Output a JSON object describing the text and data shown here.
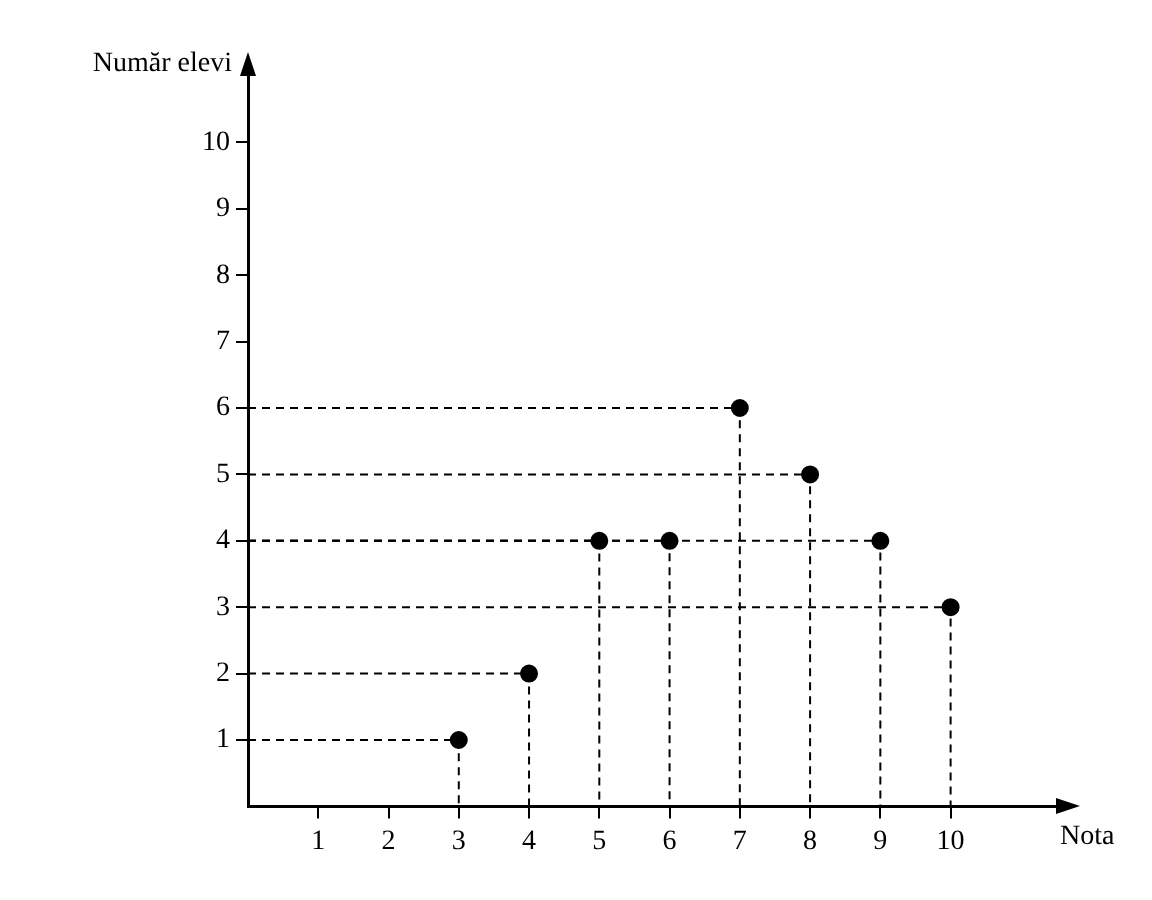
{
  "chart_data": {
    "type": "scatter",
    "xlabel": "Nota",
    "ylabel": "Număr elevi",
    "series": [
      {
        "type": "scatter",
        "color": "#000000",
        "x": [
          3,
          4,
          5,
          6,
          7,
          8,
          9,
          10
        ],
        "values": [
          1,
          2,
          4,
          4,
          6,
          5,
          4,
          3
        ],
        "marker": "circle"
      },
      {
        "type": "line",
        "color": "#000000",
        "x": [
          0,
          3,
          3
        ],
        "values": [
          1,
          1,
          0
        ],
        "line_style": "dashed",
        "marker": "none"
      },
      {
        "type": "line",
        "color": "#000000",
        "x": [
          0,
          4,
          4
        ],
        "values": [
          2,
          2,
          0
        ],
        "line_style": "dashed",
        "marker": "none"
      },
      {
        "type": "line",
        "color": "#000000",
        "x": [
          0,
          5,
          5
        ],
        "values": [
          4,
          4,
          0
        ],
        "line_style": "dashed",
        "marker": "none"
      },
      {
        "type": "line",
        "color": "#000000",
        "x": [
          0,
          6,
          6
        ],
        "values": [
          4,
          4,
          0
        ],
        "line_style": "dashed",
        "marker": "none"
      },
      {
        "type": "line",
        "color": "#000000",
        "x": [
          0,
          7,
          7
        ],
        "values": [
          6,
          6,
          0
        ],
        "line_style": "dashed",
        "marker": "none"
      },
      {
        "type": "line",
        "color": "#000000",
        "x": [
          0,
          8,
          8
        ],
        "values": [
          5,
          5,
          0
        ],
        "line_style": "dashed",
        "marker": "none"
      },
      {
        "type": "line",
        "color": "#000000",
        "x": [
          0,
          9,
          9
        ],
        "values": [
          4,
          4,
          0
        ],
        "line_style": "dashed",
        "marker": "none"
      },
      {
        "type": "line",
        "color": "#000000",
        "x": [
          0,
          10,
          10
        ],
        "values": [
          3,
          3,
          0
        ],
        "line_style": "dashed",
        "marker": "none"
      }
    ],
    "grid": false,
    "legend": false,
    "xlim": [
      0,
      11.5
    ],
    "ylim": [
      0,
      11
    ],
    "xticks": [
      1,
      2,
      3,
      4,
      5,
      6,
      7,
      8,
      9,
      10
    ],
    "yticks": [
      1,
      2,
      3,
      4,
      5,
      6,
      7,
      8,
      9,
      10
    ]
  }
}
